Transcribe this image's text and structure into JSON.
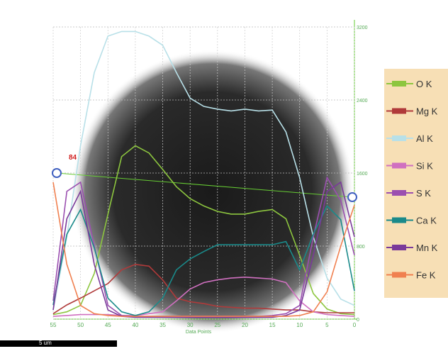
{
  "chart_data": {
    "type": "line",
    "x_label": "Data Points",
    "annotation": "84",
    "scale_bar": "5 um",
    "x": [
      55,
      52.5,
      50,
      47.5,
      45,
      42.5,
      40,
      37.5,
      35,
      32.5,
      30,
      27.5,
      25,
      22.5,
      20,
      17.5,
      15,
      12.5,
      10,
      7.5,
      5,
      2.5,
      0
    ],
    "xlim": [
      55,
      0
    ],
    "xticks": [
      55,
      50,
      45,
      40,
      35,
      30,
      25,
      20,
      15,
      10,
      5,
      0
    ],
    "ylim": [
      0,
      3200
    ],
    "yticks": [
      0,
      800,
      1600,
      2400,
      3200
    ],
    "grid": true,
    "series": [
      {
        "name": "O K",
        "color": "#8dc63f",
        "values": [
          50,
          80,
          150,
          500,
          1150,
          1780,
          1900,
          1820,
          1640,
          1450,
          1320,
          1240,
          1180,
          1150,
          1150,
          1180,
          1200,
          1100,
          700,
          280,
          110,
          60,
          50
        ]
      },
      {
        "name": "Mg K",
        "color": "#b03a3a",
        "values": [
          60,
          155,
          230,
          310,
          390,
          540,
          600,
          580,
          430,
          230,
          190,
          170,
          140,
          130,
          120,
          120,
          110,
          100,
          100,
          80,
          70,
          70,
          70
        ]
      },
      {
        "name": "Al K",
        "color": "#b8e0e8",
        "values": [
          100,
          900,
          1900,
          2700,
          3100,
          3150,
          3150,
          3100,
          3000,
          2700,
          2420,
          2330,
          2300,
          2280,
          2300,
          2280,
          2290,
          2050,
          1550,
          900,
          450,
          220,
          150
        ]
      },
      {
        "name": "Si K",
        "color": "#d070c0",
        "values": [
          30,
          40,
          50,
          50,
          50,
          40,
          40,
          60,
          80,
          200,
          330,
          400,
          430,
          450,
          460,
          450,
          440,
          400,
          200,
          80,
          50,
          40,
          30
        ]
      },
      {
        "name": "S K",
        "color": "#9b4fb0",
        "values": [
          200,
          1400,
          1500,
          800,
          150,
          40,
          30,
          30,
          30,
          30,
          30,
          30,
          30,
          30,
          30,
          30,
          40,
          60,
          150,
          900,
          1550,
          1300,
          700
        ]
      },
      {
        "name": "Ca K",
        "color": "#1a8a8a",
        "values": [
          155,
          930,
          1200,
          780,
          230,
          80,
          40,
          80,
          230,
          540,
          660,
          740,
          815,
          815,
          815,
          815,
          815,
          850,
          540,
          930,
          1240,
          1090,
          310
        ]
      },
      {
        "name": "Mn K",
        "color": "#7a3a9a",
        "values": [
          100,
          1100,
          1400,
          600,
          100,
          30,
          20,
          20,
          20,
          20,
          20,
          20,
          20,
          20,
          20,
          20,
          20,
          40,
          100,
          700,
          1400,
          1500,
          900
        ]
      },
      {
        "name": "Fe K",
        "color": "#f08050",
        "values": [
          1500,
          600,
          150,
          60,
          40,
          30,
          30,
          30,
          30,
          30,
          30,
          30,
          30,
          30,
          30,
          30,
          30,
          30,
          40,
          80,
          300,
          800,
          1250
        ]
      }
    ]
  }
}
